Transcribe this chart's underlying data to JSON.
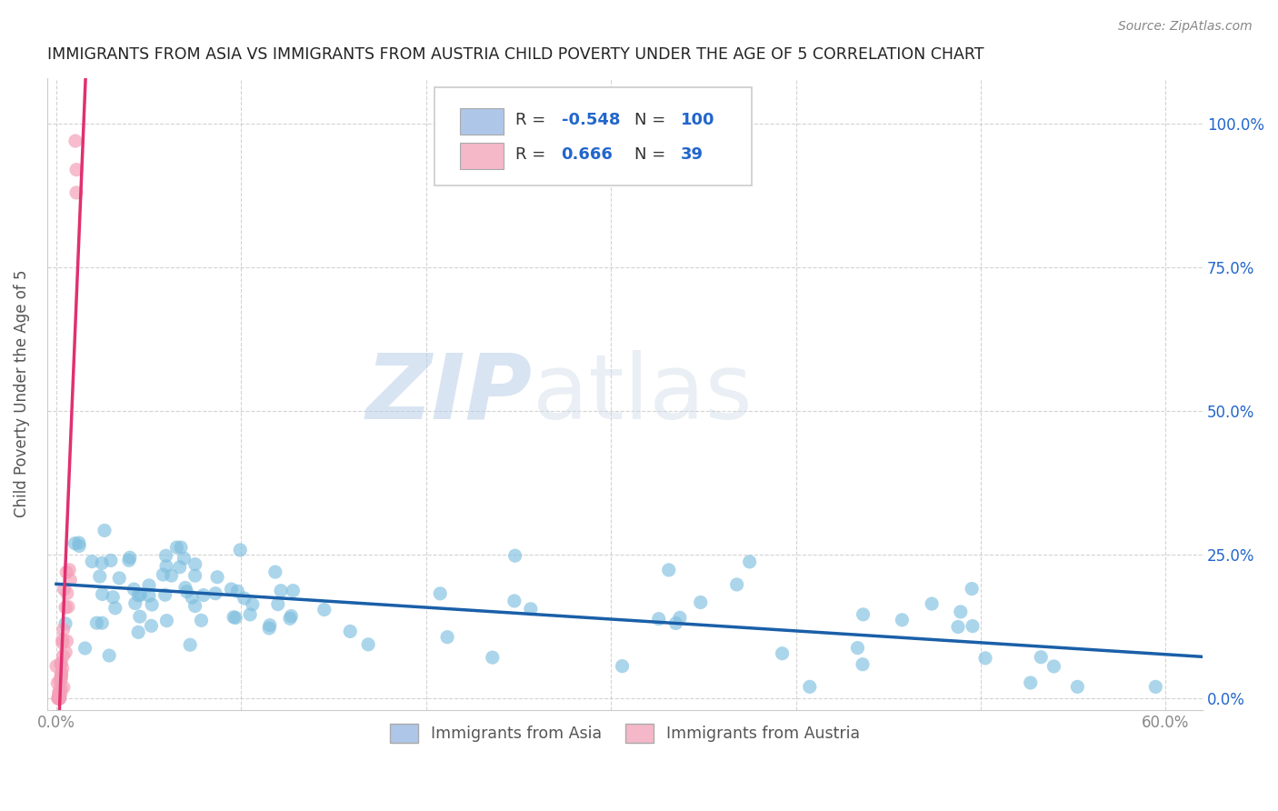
{
  "title": "IMMIGRANTS FROM ASIA VS IMMIGRANTS FROM AUSTRIA CHILD POVERTY UNDER THE AGE OF 5 CORRELATION CHART",
  "source": "Source: ZipAtlas.com",
  "ylabel": "Child Poverty Under the Age of 5",
  "xlabel": "",
  "xlim": [
    -0.005,
    0.62
  ],
  "ylim": [
    -0.02,
    1.08
  ],
  "xticks": [
    0.0,
    0.1,
    0.2,
    0.3,
    0.4,
    0.5,
    0.6
  ],
  "xticklabels_show": [
    "0.0%",
    "",
    "",
    "",
    "",
    "",
    "60.0%"
  ],
  "yticks": [
    0.0,
    0.25,
    0.5,
    0.75,
    1.0
  ],
  "yticklabels_right": [
    "0.0%",
    "25.0%",
    "50.0%",
    "75.0%",
    "100.0%"
  ],
  "legend_labels": [
    "Immigrants from Asia",
    "Immigrants from Austria"
  ],
  "legend_box_colors": [
    "#aec6e8",
    "#f4b8c8"
  ],
  "R_asia": -0.548,
  "N_asia": 100,
  "R_austria": 0.666,
  "N_austria": 39,
  "blue_color": "#7fbfdf",
  "pink_color": "#f4a0b8",
  "blue_line_color": "#1a5fa8",
  "pink_line_color": "#e03070",
  "watermark": "ZIPatlas",
  "watermark_color": "#c5d8ec",
  "background_color": "#ffffff",
  "grid_color": "#c8c8c8",
  "title_color": "#222222",
  "axis_label_color": "#555555",
  "tick_color": "#888888",
  "right_tick_color": "#2266cc"
}
